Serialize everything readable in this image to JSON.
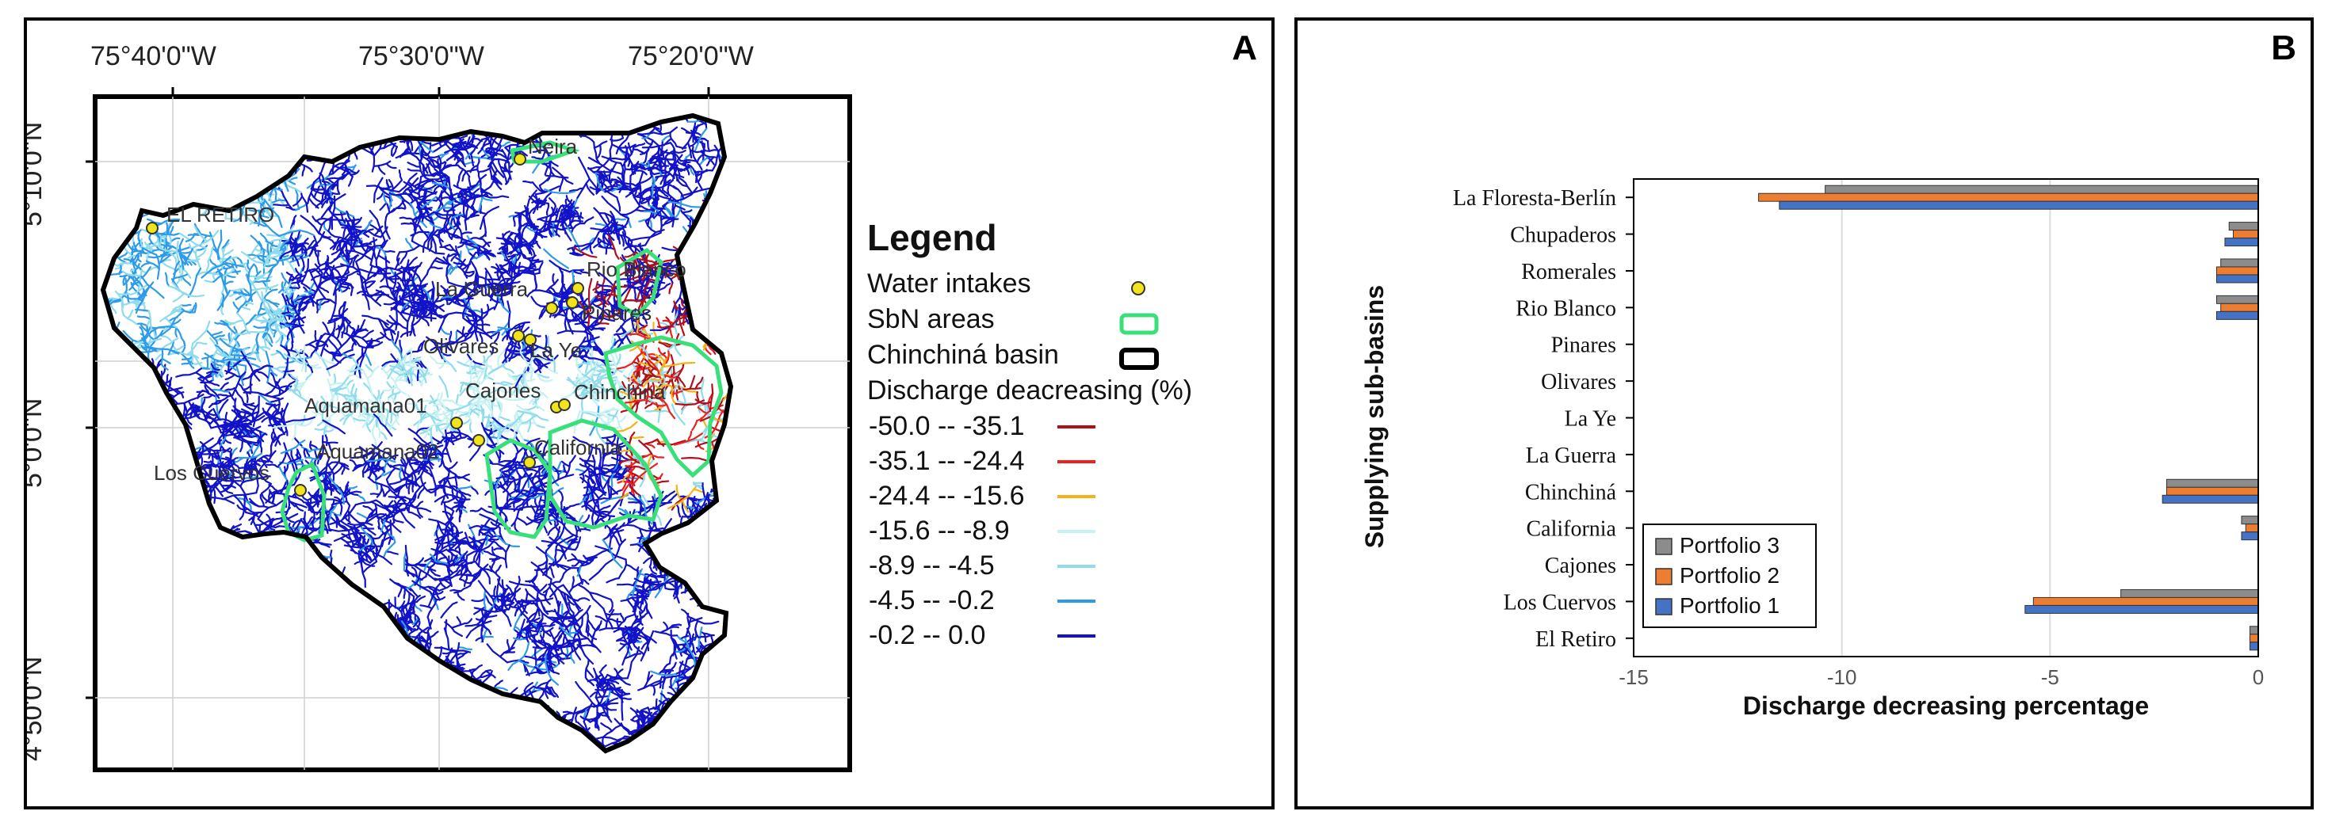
{
  "panels": {
    "a_letter": "A",
    "b_letter": "B"
  },
  "map": {
    "lon_labels": [
      "75°40'0\"W",
      "75°30'0\"W",
      "75°20'0\"W"
    ],
    "lat_labels": [
      "5°10'0\"N",
      "5°0'0\"N",
      "4°50'0\"N"
    ],
    "places": [
      {
        "name": "Neira",
        "label": "Neira"
      },
      {
        "name": "el-retiro",
        "label": "EL RETIRO"
      },
      {
        "name": "rio-blanco",
        "label": "Rio Blanco"
      },
      {
        "name": "la-guerra",
        "label": "La Guerra"
      },
      {
        "name": "pinares",
        "label": "Pinares"
      },
      {
        "name": "olivares",
        "label": "Olivares"
      },
      {
        "name": "la-ye",
        "label": "La Ye"
      },
      {
        "name": "cajones",
        "label": "Cajones"
      },
      {
        "name": "chinchina",
        "label": "Chinchiná"
      },
      {
        "name": "aquamana01",
        "label": "Aquamana01"
      },
      {
        "name": "aquamana02",
        "label": "Aquamana02"
      },
      {
        "name": "california",
        "label": "California"
      },
      {
        "name": "los-cuervos",
        "label": "Los Cuervos"
      }
    ],
    "legend": {
      "title": "Legend",
      "water_intakes": "Water intakes",
      "sbn_areas": "SbN areas",
      "basin": "Chinchiná basin",
      "discharge_title": "Discharge deacreasing (%)",
      "classes": [
        {
          "label": "-50.0 -- -35.1",
          "color": "#b0101a"
        },
        {
          "label": "-35.1 -- -24.4",
          "color": "#ee2020"
        },
        {
          "label": "-24.4 -- -15.6",
          "color": "#f5b21a"
        },
        {
          "label": "-15.6 -- -8.9",
          "color": "#c8f2f2"
        },
        {
          "label": "-8.9  -- -4.5",
          "color": "#8fdcec"
        },
        {
          "label": "-4.5  -- -0.2",
          "color": "#2f9be8"
        },
        {
          "label": "-0.2  -- 0.0",
          "color": "#1212c8"
        }
      ],
      "intake_color": "#f2e41c",
      "sbn_color": "#39e07a"
    }
  },
  "chart_data": {
    "type": "bar",
    "orientation": "horizontal",
    "categories": [
      "La Floresta-Berlín",
      "Chupaderos",
      "Romerales",
      "Rio Blanco",
      "Pinares",
      "Olivares",
      "La Ye",
      "La Guerra",
      "Chinchiná",
      "California",
      "Cajones",
      "Los Cuervos",
      "El Retiro"
    ],
    "series": [
      {
        "name": "Portfolio 3",
        "color": "#8c8c8c",
        "values": [
          -10.4,
          -0.7,
          -0.9,
          -1.0,
          0,
          0,
          0,
          0,
          -2.2,
          -0.4,
          0,
          -3.3,
          -0.2
        ]
      },
      {
        "name": "Portfolio 2",
        "color": "#ed7d31",
        "values": [
          -12.0,
          -0.6,
          -1.0,
          -0.9,
          0,
          0,
          0,
          0,
          -2.2,
          -0.3,
          0,
          -5.4,
          -0.2
        ]
      },
      {
        "name": "Portfolio 1",
        "color": "#4472c4",
        "values": [
          -11.5,
          -0.8,
          -1.0,
          -1.0,
          0,
          0,
          0,
          0,
          -2.3,
          -0.4,
          0,
          -5.6,
          -0.2
        ]
      }
    ],
    "xlabel": "Discharge decreasing percentage",
    "ylabel": "Supplying sub-basins",
    "xlim": [
      -15,
      0
    ],
    "xticks": [
      -15,
      -10,
      -5,
      0
    ],
    "xtick_labels": [
      "-15",
      "-10",
      "-5",
      "0"
    ],
    "grid": true,
    "legend_position": "bottom-left"
  }
}
